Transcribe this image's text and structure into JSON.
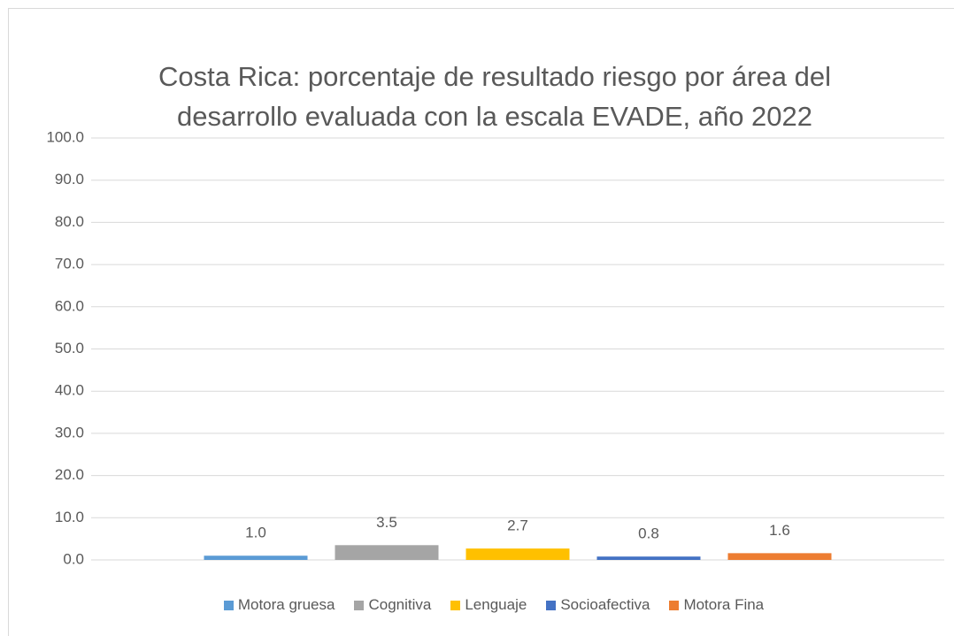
{
  "chart_data": {
    "type": "bar",
    "title": "Costa Rica: porcentaje de resultado riesgo por área del desarrollo evaluada con la escala EVADE, año 2022",
    "categories": [
      null
    ],
    "series": [
      {
        "name": "Motora gruesa",
        "color": "#5b9bd5",
        "values": [
          1.0
        ],
        "value_labels": [
          "1.0"
        ]
      },
      {
        "name": "Cognitiva",
        "color": "#a5a5a5",
        "values": [
          3.5
        ],
        "value_labels": [
          "3.5"
        ]
      },
      {
        "name": "Lenguaje",
        "color": "#ffc000",
        "values": [
          2.7
        ],
        "value_labels": [
          "2.7"
        ]
      },
      {
        "name": "Socioafectiva",
        "color": "#4472c4",
        "values": [
          0.8
        ],
        "value_labels": [
          "0.8"
        ]
      },
      {
        "name": "Motora Fina",
        "color": "#ed7d31",
        "values": [
          1.6
        ],
        "value_labels": [
          "1.6"
        ]
      }
    ],
    "ylim": [
      0,
      100
    ],
    "yticks": [
      {
        "value": 0,
        "label": "0.0"
      },
      {
        "value": 10,
        "label": "10.0"
      },
      {
        "value": 20,
        "label": "20.0"
      },
      {
        "value": 30,
        "label": "30.0"
      },
      {
        "value": 40,
        "label": "40.0"
      },
      {
        "value": 50,
        "label": "50.0"
      },
      {
        "value": 60,
        "label": "60.0"
      },
      {
        "value": 70,
        "label": "70.0"
      },
      {
        "value": 80,
        "label": "80.0"
      },
      {
        "value": 90,
        "label": "90.0"
      },
      {
        "value": 100,
        "label": "100.0"
      }
    ],
    "grid": true,
    "legend": "bottom"
  }
}
